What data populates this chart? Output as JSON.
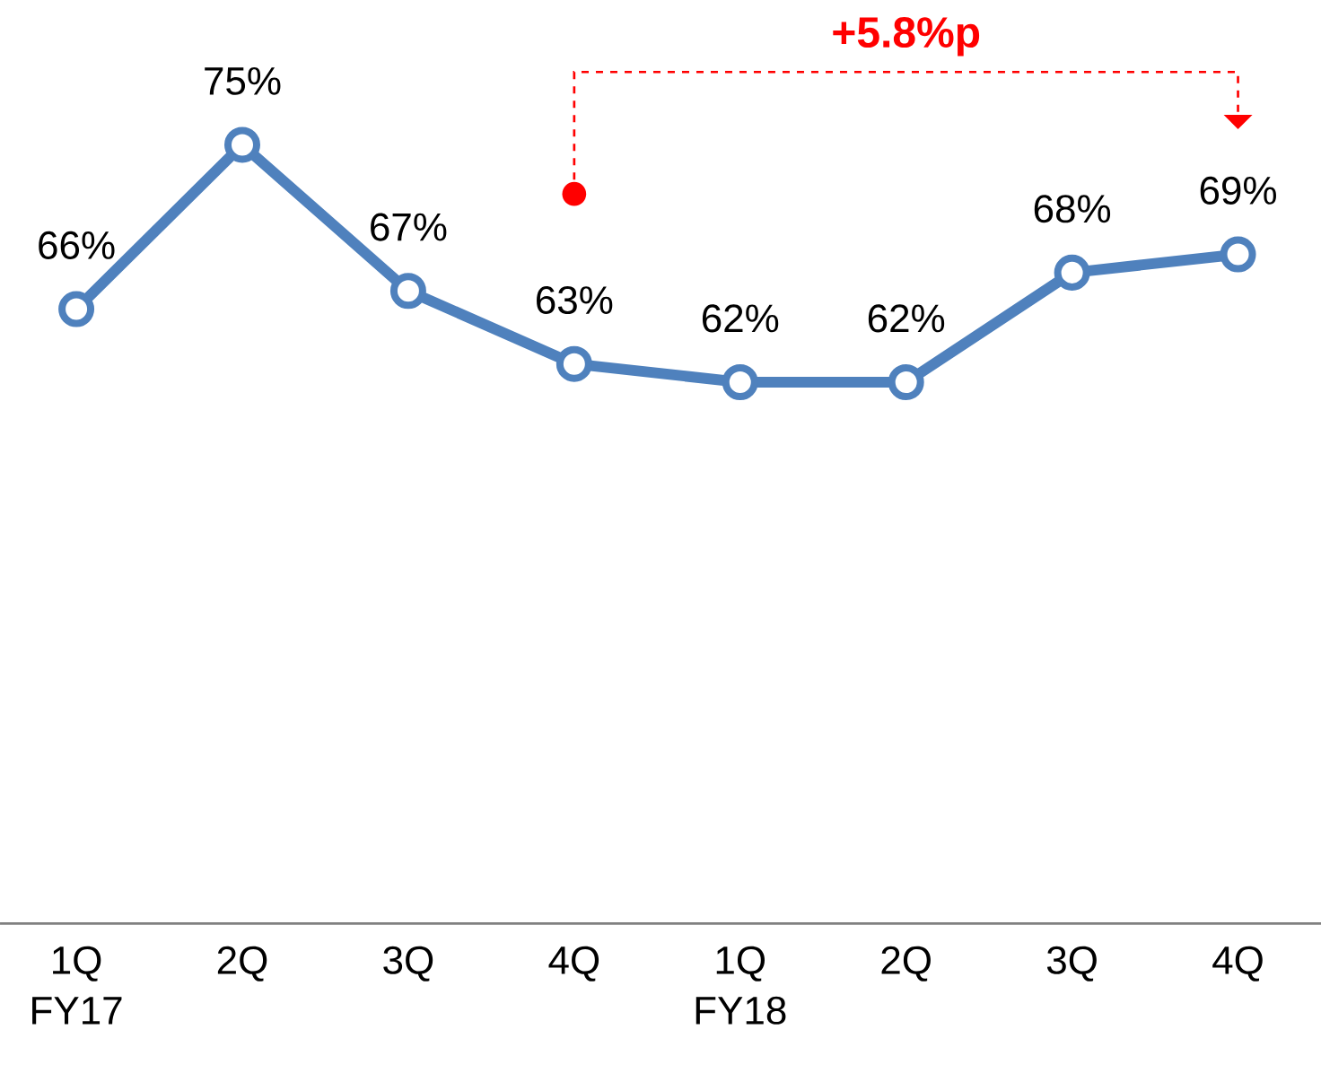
{
  "chart_data": {
    "type": "line",
    "categories": [
      "1Q FY17",
      "2Q",
      "3Q",
      "4Q",
      "1Q FY18",
      "2Q",
      "3Q",
      "4Q"
    ],
    "series": [
      {
        "color": "#4f81bd",
        "values": [
          66,
          75,
          67,
          63,
          62,
          62,
          68,
          69
        ],
        "value_labels": [
          "66%",
          "75%",
          "67%",
          "63%",
          "62%",
          "62%",
          "68%",
          "69%"
        ]
      }
    ],
    "marker": "circle",
    "annotations": [
      "+5.8%p"
    ]
  }
}
